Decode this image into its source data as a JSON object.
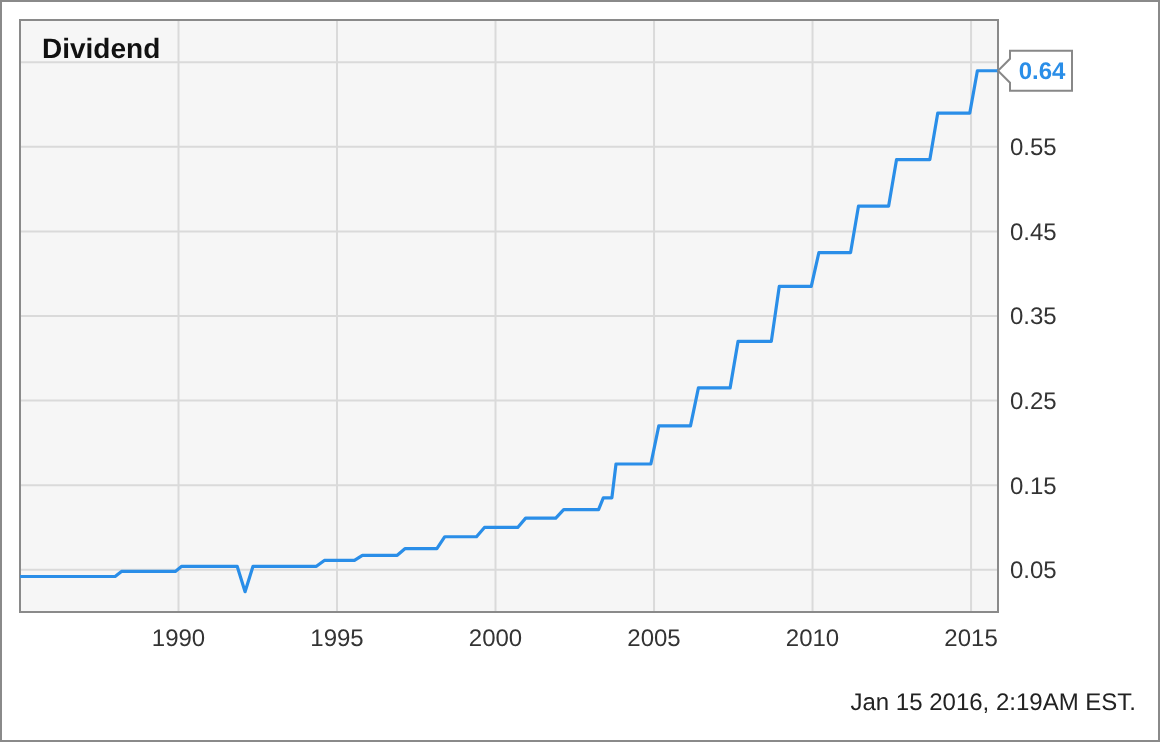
{
  "chart_data": {
    "type": "line",
    "title": "Dividend",
    "x": [
      1985,
      1988,
      1988.2,
      1989.9,
      1990.1,
      1991.85,
      1992.1,
      1992.35,
      1994.35,
      1994.6,
      1995.55,
      1995.8,
      1996.9,
      1997.15,
      1998.15,
      1998.4,
      1999.4,
      1999.65,
      2000.7,
      2000.95,
      2001.9,
      2002.15,
      2003.25,
      2003.4,
      2003.67,
      2003.8,
      2004.9,
      2005.15,
      2006.15,
      2006.4,
      2007.4,
      2007.65,
      2008.7,
      2008.95,
      2009.96,
      2010.2,
      2011.2,
      2011.45,
      2012.4,
      2012.65,
      2013.7,
      2013.95,
      2014.96,
      2015.2,
      2015.85
    ],
    "series": [
      {
        "color": "#2a8ee8",
        "values": [
          0.042,
          0.042,
          0.048,
          0.048,
          0.054,
          0.054,
          0.024,
          0.054,
          0.054,
          0.061,
          0.061,
          0.067,
          0.067,
          0.075,
          0.075,
          0.089,
          0.089,
          0.1,
          0.1,
          0.111,
          0.111,
          0.121,
          0.121,
          0.135,
          0.135,
          0.175,
          0.175,
          0.22,
          0.22,
          0.265,
          0.265,
          0.32,
          0.32,
          0.385,
          0.385,
          0.425,
          0.425,
          0.48,
          0.48,
          0.535,
          0.535,
          0.59,
          0.59,
          0.64,
          0.64
        ]
      }
    ],
    "xlim": [
      1985,
      2015.85
    ],
    "xticks": [
      1990,
      1995,
      2000,
      2005,
      2010,
      2015
    ],
    "ylim": [
      0,
      0.7
    ],
    "yticks": [
      0.05,
      0.15,
      0.25,
      0.35,
      0.45,
      0.55,
      {
        "value": 0.65,
        "label": null
      }
    ],
    "grid": true,
    "marker": "none",
    "line_style": "solid",
    "annotations": [
      {
        "text": "0.64",
        "x": 2015.85,
        "y": 0.64
      },
      "Jan 15 2016, 2:19AM EST."
    ]
  }
}
